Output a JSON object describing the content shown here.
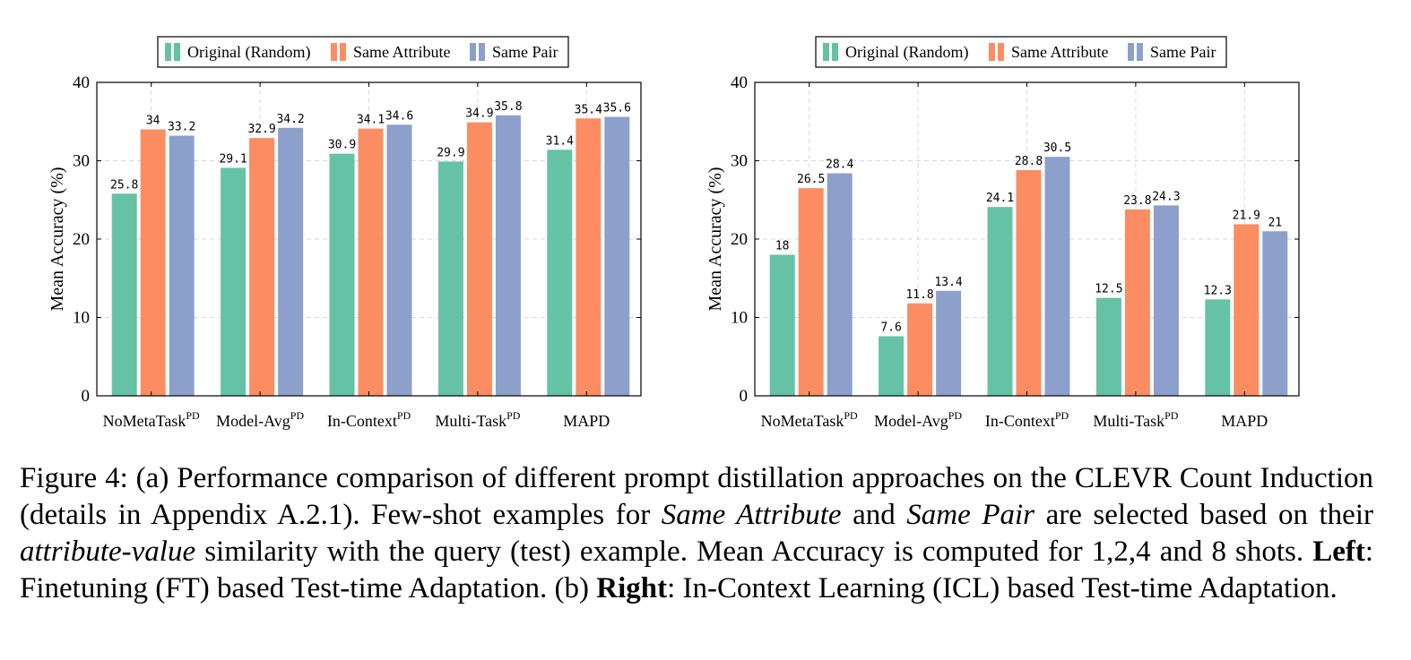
{
  "legend": {
    "entries": [
      "Original (Random)",
      "Same Attribute",
      "Same Pair"
    ]
  },
  "colors": {
    "original": "#66c2a5",
    "same_attribute": "#fc8d62",
    "same_pair": "#8da0cb"
  },
  "chart_data": [
    {
      "type": "bar",
      "panel": "left",
      "ylabel": "Mean Accuracy (%)",
      "ylim": [
        0,
        40
      ],
      "yticks": [
        0,
        10,
        20,
        30,
        40
      ],
      "grid": true,
      "legend_position": "top-center",
      "categories": [
        {
          "base": "NoMetaTask",
          "sup": "PD"
        },
        {
          "base": "Model-Avg",
          "sup": "PD"
        },
        {
          "base": "In-Context",
          "sup": "PD"
        },
        {
          "base": "Multi-Task",
          "sup": "PD"
        },
        {
          "base": "MAPD",
          "sup": ""
        }
      ],
      "series": [
        {
          "name": "Original (Random)",
          "color": "#66c2a5",
          "values": [
            25.8,
            29.1,
            30.9,
            29.9,
            31.4
          ]
        },
        {
          "name": "Same Attribute",
          "color": "#fc8d62",
          "values": [
            34,
            32.9,
            34.1,
            34.9,
            35.4
          ]
        },
        {
          "name": "Same Pair",
          "color": "#8da0cb",
          "values": [
            33.2,
            34.2,
            34.6,
            35.8,
            35.6
          ]
        }
      ]
    },
    {
      "type": "bar",
      "panel": "right",
      "ylabel": "Mean Accuracy (%)",
      "ylim": [
        0,
        40
      ],
      "yticks": [
        0,
        10,
        20,
        30,
        40
      ],
      "grid": true,
      "legend_position": "top-center",
      "categories": [
        {
          "base": "NoMetaTask",
          "sup": "PD"
        },
        {
          "base": "Model-Avg",
          "sup": "PD"
        },
        {
          "base": "In-Context",
          "sup": "PD"
        },
        {
          "base": "Multi-Task",
          "sup": "PD"
        },
        {
          "base": "MAPD",
          "sup": ""
        }
      ],
      "series": [
        {
          "name": "Original (Random)",
          "color": "#66c2a5",
          "values": [
            18,
            7.6,
            24.1,
            12.5,
            12.3
          ]
        },
        {
          "name": "Same Attribute",
          "color": "#fc8d62",
          "values": [
            26.5,
            11.8,
            28.8,
            23.8,
            21.9
          ]
        },
        {
          "name": "Same Pair",
          "color": "#8da0cb",
          "values": [
            28.4,
            13.4,
            30.5,
            24.3,
            21
          ]
        }
      ]
    }
  ],
  "caption": {
    "part1": "Figure 4: (a) Performance comparison of different prompt distillation approaches on the CLEVR Count Induction (details in Appendix A.2.1). Few-shot examples for ",
    "same_attribute": "Same Attribute",
    "and": " and ",
    "same_pair": "Same Pair",
    "part2": " are selected based on their ",
    "attribute_value": "attribute-value",
    "part3": " similarity with the query (test) example. Mean Accuracy is computed for 1,2,4 and 8 shots. ",
    "left": "Left",
    "part4": ": Finetuning (FT) based Test-time Adaptation. (b) ",
    "right": "Right",
    "part5": ": In-Context Learning (ICL) based Test-time Adaptation."
  }
}
